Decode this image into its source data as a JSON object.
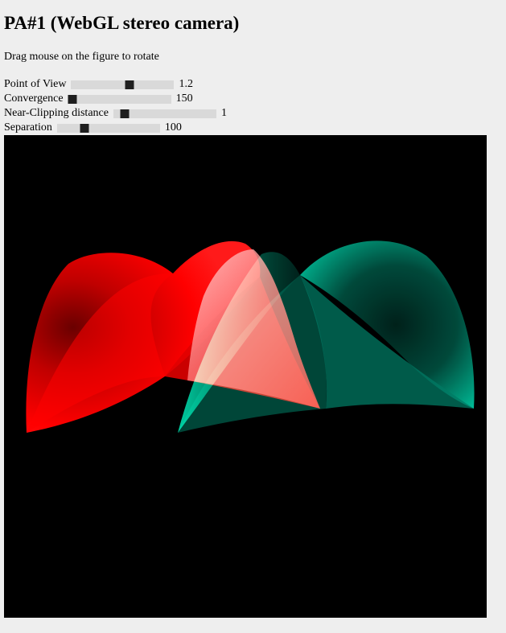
{
  "page": {
    "title": "PA#1 (WebGL stereo camera)",
    "hint": "Drag mouse on the figure to rotate"
  },
  "controls": [
    {
      "label": "Point of View",
      "value": "1.2",
      "fraction": 0.57
    },
    {
      "label": "Convergence",
      "value": "150",
      "fraction": 0.04
    },
    {
      "label": "Near-Clipping distance",
      "value": "1",
      "fraction": 0.11
    },
    {
      "label": "Separation",
      "value": "100",
      "fraction": 0.27
    }
  ],
  "canvas": {
    "background": "#000000",
    "left_eye_color": "#ff0000",
    "right_eye_color": "#00c8a0"
  }
}
